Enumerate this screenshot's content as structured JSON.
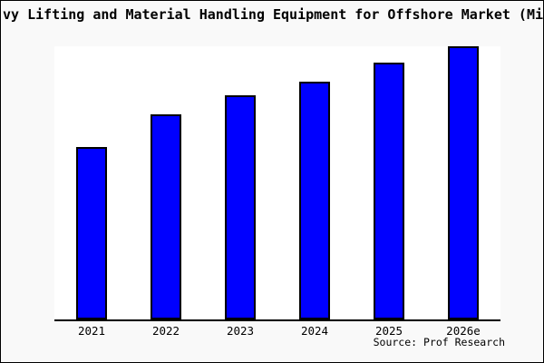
{
  "chart": {
    "title": "vy Lifting and Material Handling Equipment for Offshore Market (Mi",
    "source": "Source: Prof Research"
  },
  "chart_data": {
    "type": "bar",
    "title": "vy Lifting and Material Handling Equipment for Offshore Market (Mi",
    "categories": [
      "2021",
      "2022",
      "2023",
      "2024",
      "2025",
      "2026e"
    ],
    "values": [
      63,
      75,
      82,
      87,
      94,
      100
    ],
    "xlabel": "",
    "ylabel": "",
    "ylim": [
      0,
      100
    ],
    "grid": false,
    "legend": false,
    "y_axis_labels_visible": false,
    "bar_color": "#0000ff",
    "bar_border_color": "#000000",
    "axis_color": "#000000",
    "plot_bg_color": "#ffffff",
    "canvas_bg_color": "#f9f9f9",
    "source": "Source: Prof Research"
  }
}
